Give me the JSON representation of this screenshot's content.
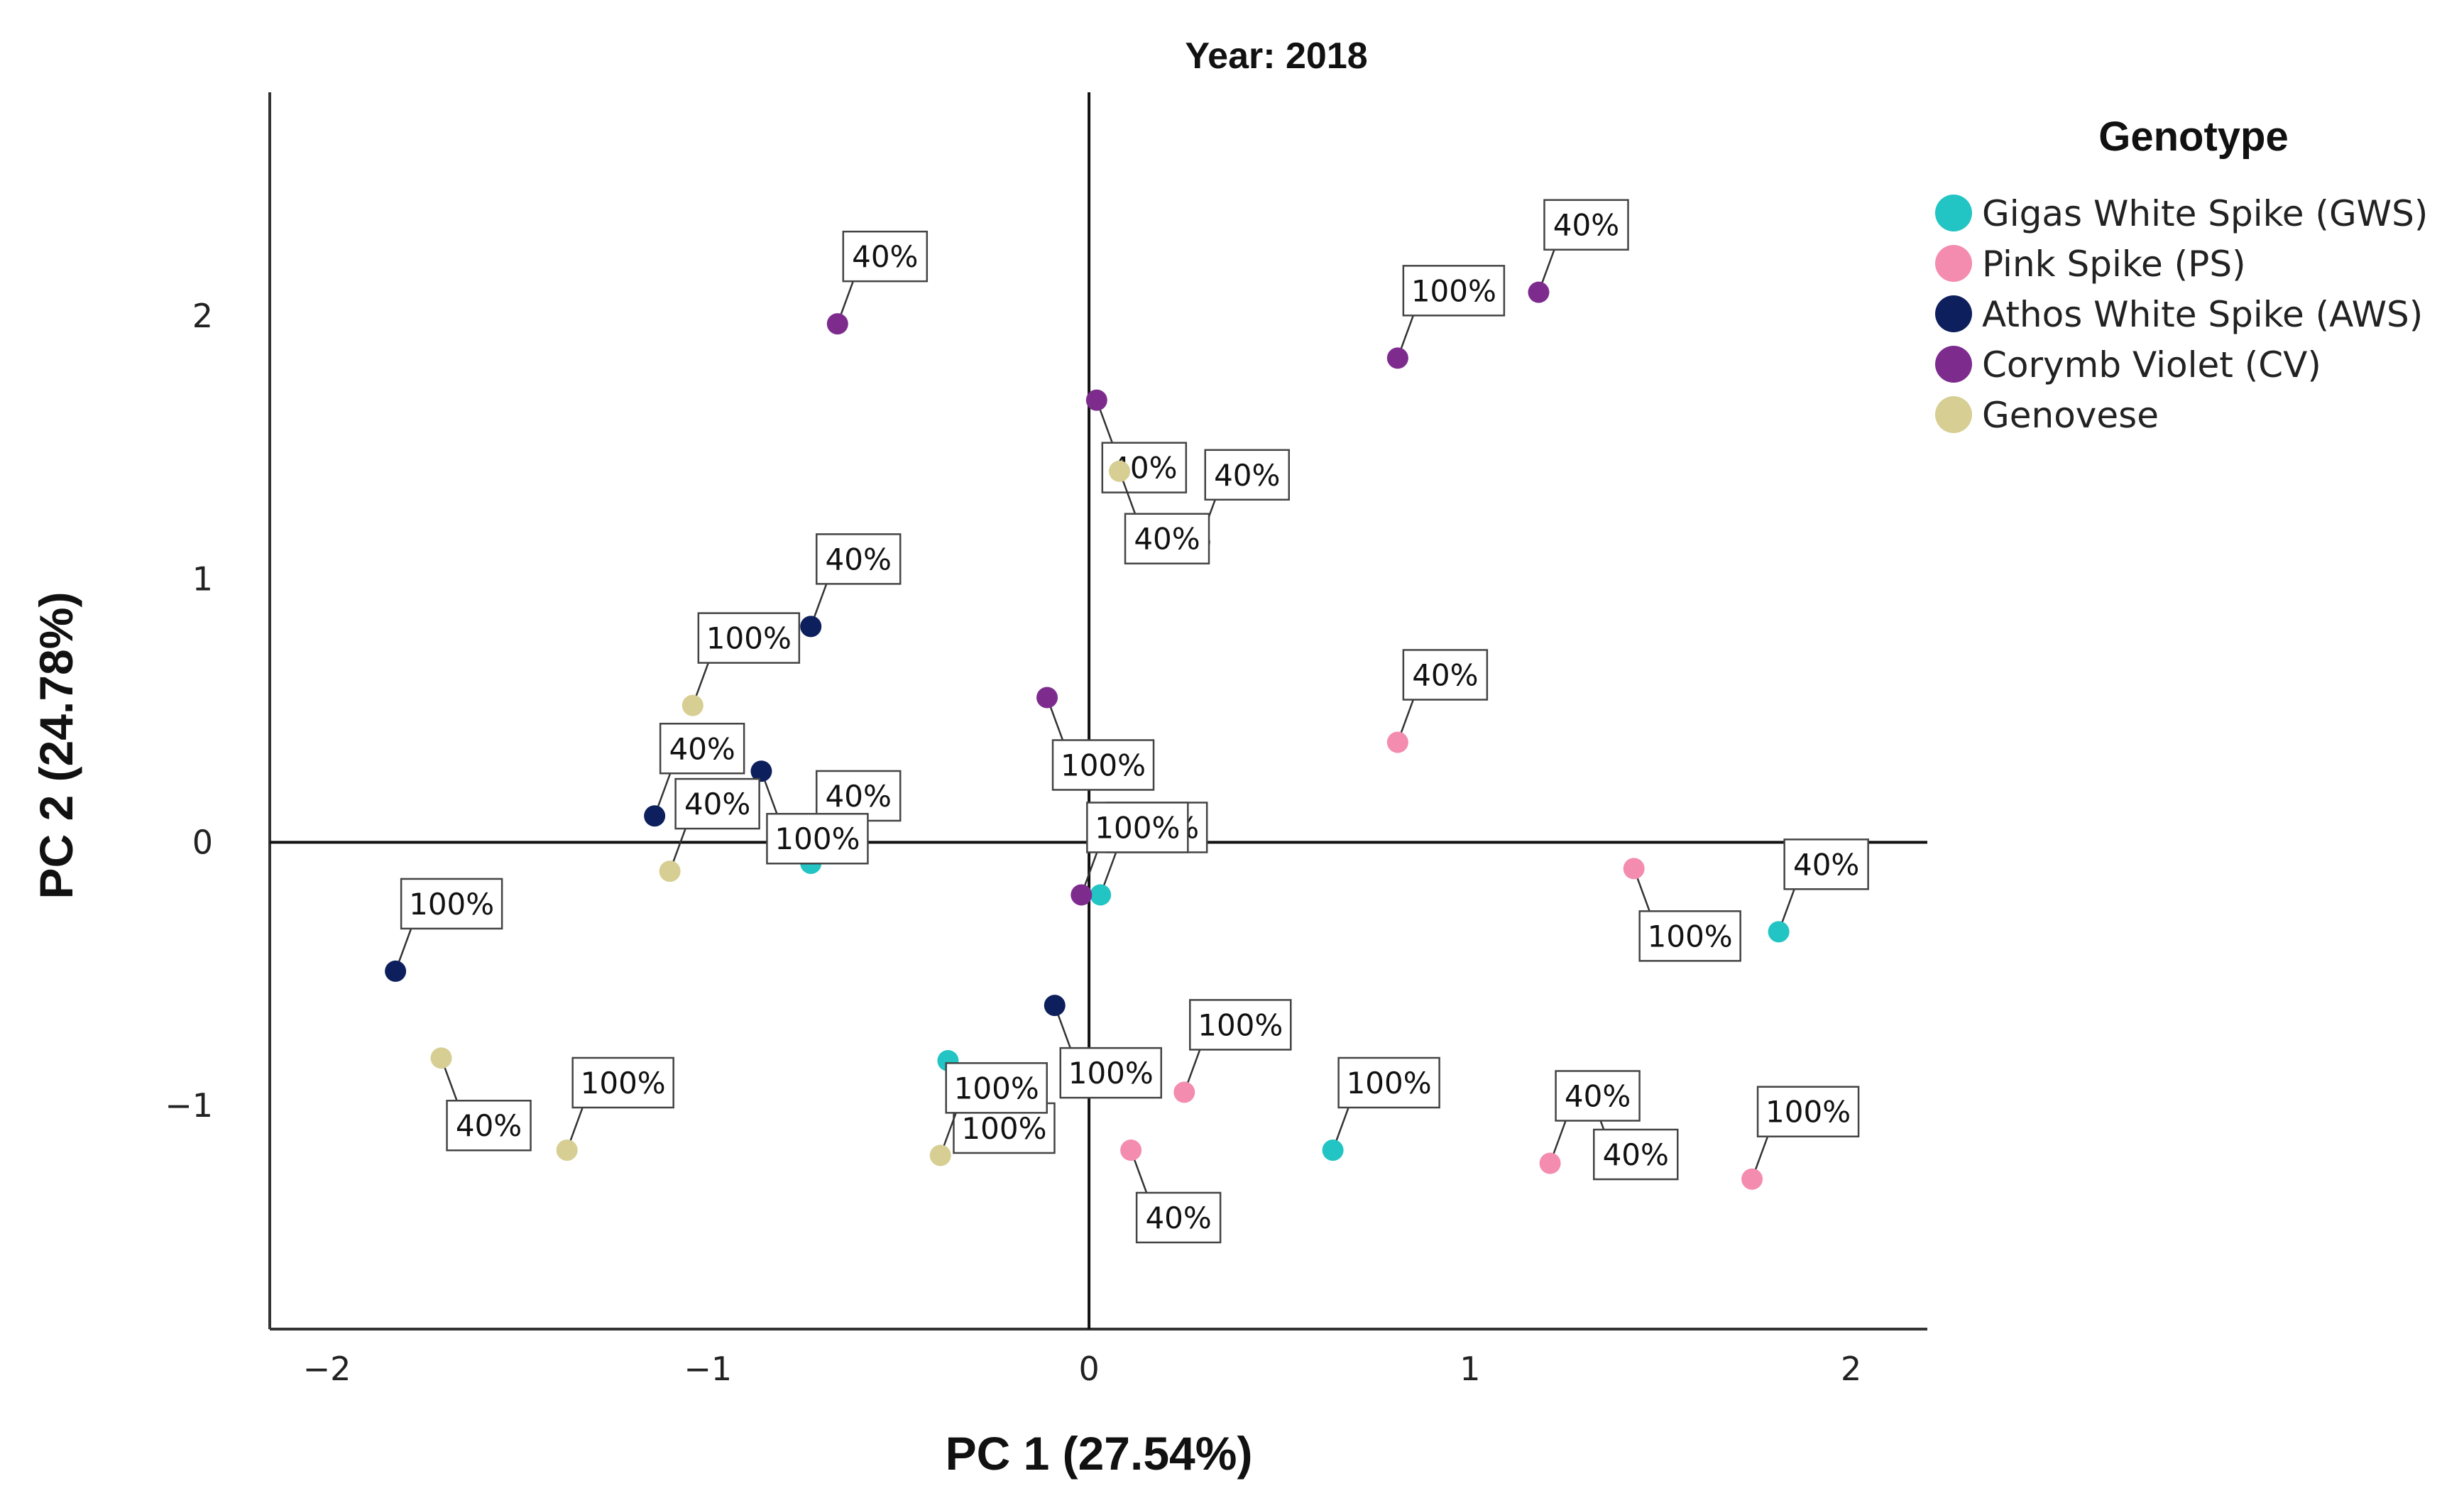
{
  "chart_data": {
    "type": "scatter",
    "title": "Year: 2018",
    "xlabel": "PC 1 (27.54%)",
    "ylabel": "PC 2 (24.78%)",
    "xlim": [
      -2.15,
      2.2
    ],
    "ylim": [
      -1.85,
      2.85
    ],
    "xticks": [
      -2,
      -1,
      0,
      1,
      2
    ],
    "yticks": [
      -1,
      0,
      1,
      2
    ],
    "reference_lines": {
      "x": 0,
      "y": 0
    },
    "grid": false,
    "legend": {
      "title": "Genotype",
      "position": "right"
    },
    "series": [
      {
        "name": "Gigas White Spike (GWS)",
        "color": "#22c4c4",
        "points": [
          {
            "x": 1.81,
            "y": -0.34,
            "label": "40%"
          },
          {
            "x": 1.31,
            "y": -0.93,
            "label": "40%"
          },
          {
            "x": 0.64,
            "y": -1.17,
            "label": "100%"
          },
          {
            "x": -0.73,
            "y": -0.08,
            "label": "40%"
          },
          {
            "x": -0.37,
            "y": -0.83,
            "label": "100%"
          },
          {
            "x": 0.03,
            "y": -0.2,
            "label": "100%"
          }
        ]
      },
      {
        "name": "Pink Spike (PS)",
        "color": "#f48cb0",
        "points": [
          {
            "x": 1.43,
            "y": -0.1,
            "label": "100%"
          },
          {
            "x": 0.81,
            "y": 0.38,
            "label": "40%"
          },
          {
            "x": 0.25,
            "y": -0.95,
            "label": "100%"
          },
          {
            "x": 0.11,
            "y": -1.17,
            "label": "40%"
          },
          {
            "x": 1.21,
            "y": -1.22,
            "label": "40%"
          },
          {
            "x": 1.74,
            "y": -1.28,
            "label": "100%"
          }
        ]
      },
      {
        "name": "Athos White Spike (AWS)",
        "color": "#0d1f5c",
        "points": [
          {
            "x": 0.29,
            "y": 1.14,
            "label": "40%"
          },
          {
            "x": -0.73,
            "y": 0.82,
            "label": "40%"
          },
          {
            "x": -0.86,
            "y": 0.27,
            "label": "100%"
          },
          {
            "x": -1.14,
            "y": 0.1,
            "label": "40%"
          },
          {
            "x": -1.82,
            "y": -0.49,
            "label": "100%"
          },
          {
            "x": -0.09,
            "y": -0.62,
            "label": "100%"
          }
        ]
      },
      {
        "name": "Corymb Violet (CV)",
        "color": "#7d2c8e",
        "points": [
          {
            "x": -0.66,
            "y": 1.97,
            "label": "40%"
          },
          {
            "x": 0.02,
            "y": 1.68,
            "label": "40%"
          },
          {
            "x": 0.81,
            "y": 1.84,
            "label": "100%"
          },
          {
            "x": 1.18,
            "y": 2.09,
            "label": "40%"
          },
          {
            "x": -0.11,
            "y": 0.55,
            "label": "100%"
          },
          {
            "x": -0.02,
            "y": -0.2,
            "label": "100%"
          }
        ]
      },
      {
        "name": "Genovese",
        "color": "#d6ce92",
        "points": [
          {
            "x": 0.08,
            "y": 1.41,
            "label": "40%"
          },
          {
            "x": -1.04,
            "y": 0.52,
            "label": "100%"
          },
          {
            "x": -1.1,
            "y": -0.11,
            "label": "40%"
          },
          {
            "x": -1.7,
            "y": -0.82,
            "label": "40%"
          },
          {
            "x": -1.37,
            "y": -1.17,
            "label": "100%"
          },
          {
            "x": -0.39,
            "y": -1.19,
            "label": "100%"
          }
        ]
      }
    ]
  }
}
